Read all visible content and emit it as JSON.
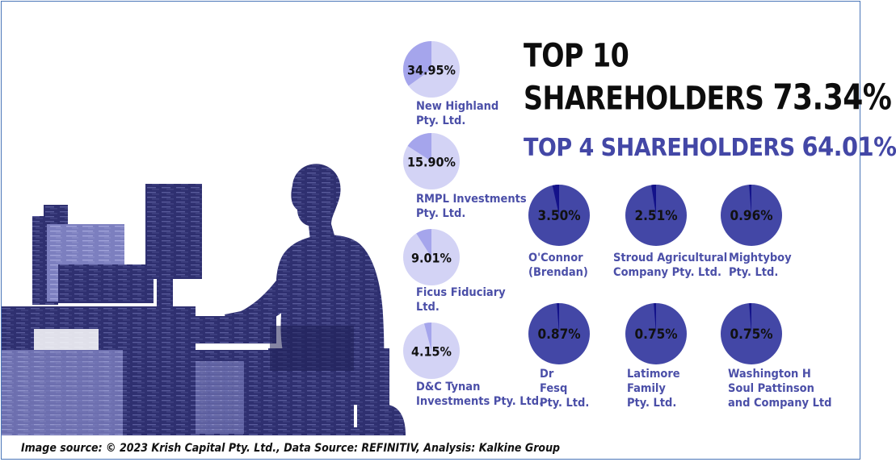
{
  "title": {
    "line1": "TOP 10",
    "line2_text": "SHAREHOLDERS",
    "line2_value": "73.34%"
  },
  "subtitle": {
    "text": "TOP 4 SHAREHOLDERS",
    "value": "64.01%"
  },
  "source": "Image source: © 2023 Krish Capital Pty. Ltd., Data Source: REFINITIV, Analysis: Kalkine Group",
  "colors": {
    "light_pie": "#d3d3f5",
    "light_slice": "#9696e8",
    "dark_pie": "#4347a6",
    "dark_slice": "#13128a",
    "name_text": "#4b4fa8",
    "silhouette": "#2f3070"
  },
  "chart_data": {
    "type": "pie",
    "unit": "%",
    "items": [
      {
        "label": "34.95%",
        "value": 34.95,
        "name_lines": [
          "New Highland",
          "Pty. Ltd."
        ]
      },
      {
        "label": "15.90%",
        "value": 15.9,
        "name_lines": [
          "RMPL Investments",
          "Pty. Ltd."
        ]
      },
      {
        "label": "9.01%",
        "value": 9.01,
        "name_lines": [
          "Ficus Fiduciary",
          "Ltd."
        ]
      },
      {
        "label": "4.15%",
        "value": 4.15,
        "name_lines": [
          "D&C Tynan",
          "Investments Pty. Ltd."
        ]
      },
      {
        "label": "3.50%",
        "value": 3.5,
        "name_lines": [
          "O'Connor",
          "(Brendan)"
        ]
      },
      {
        "label": "2.51%",
        "value": 2.51,
        "name_lines": [
          "Stroud Agricultural",
          "Company Pty. Ltd."
        ]
      },
      {
        "label": "0.96%",
        "value": 0.96,
        "name_lines": [
          "Mightyboy",
          "Pty. Ltd."
        ]
      },
      {
        "label": "0.87%",
        "value": 0.87,
        "name_lines": [
          "Dr",
          "Fesq",
          "Pty. Ltd."
        ]
      },
      {
        "label": "0.75%",
        "value": 0.75,
        "name_lines": [
          "Latimore",
          "Family",
          "Pty. Ltd."
        ]
      },
      {
        "label": "0.75%",
        "value": 0.75,
        "name_lines": [
          "Washington H",
          "Soul Pattinson",
          "and Company Ltd"
        ]
      }
    ]
  }
}
